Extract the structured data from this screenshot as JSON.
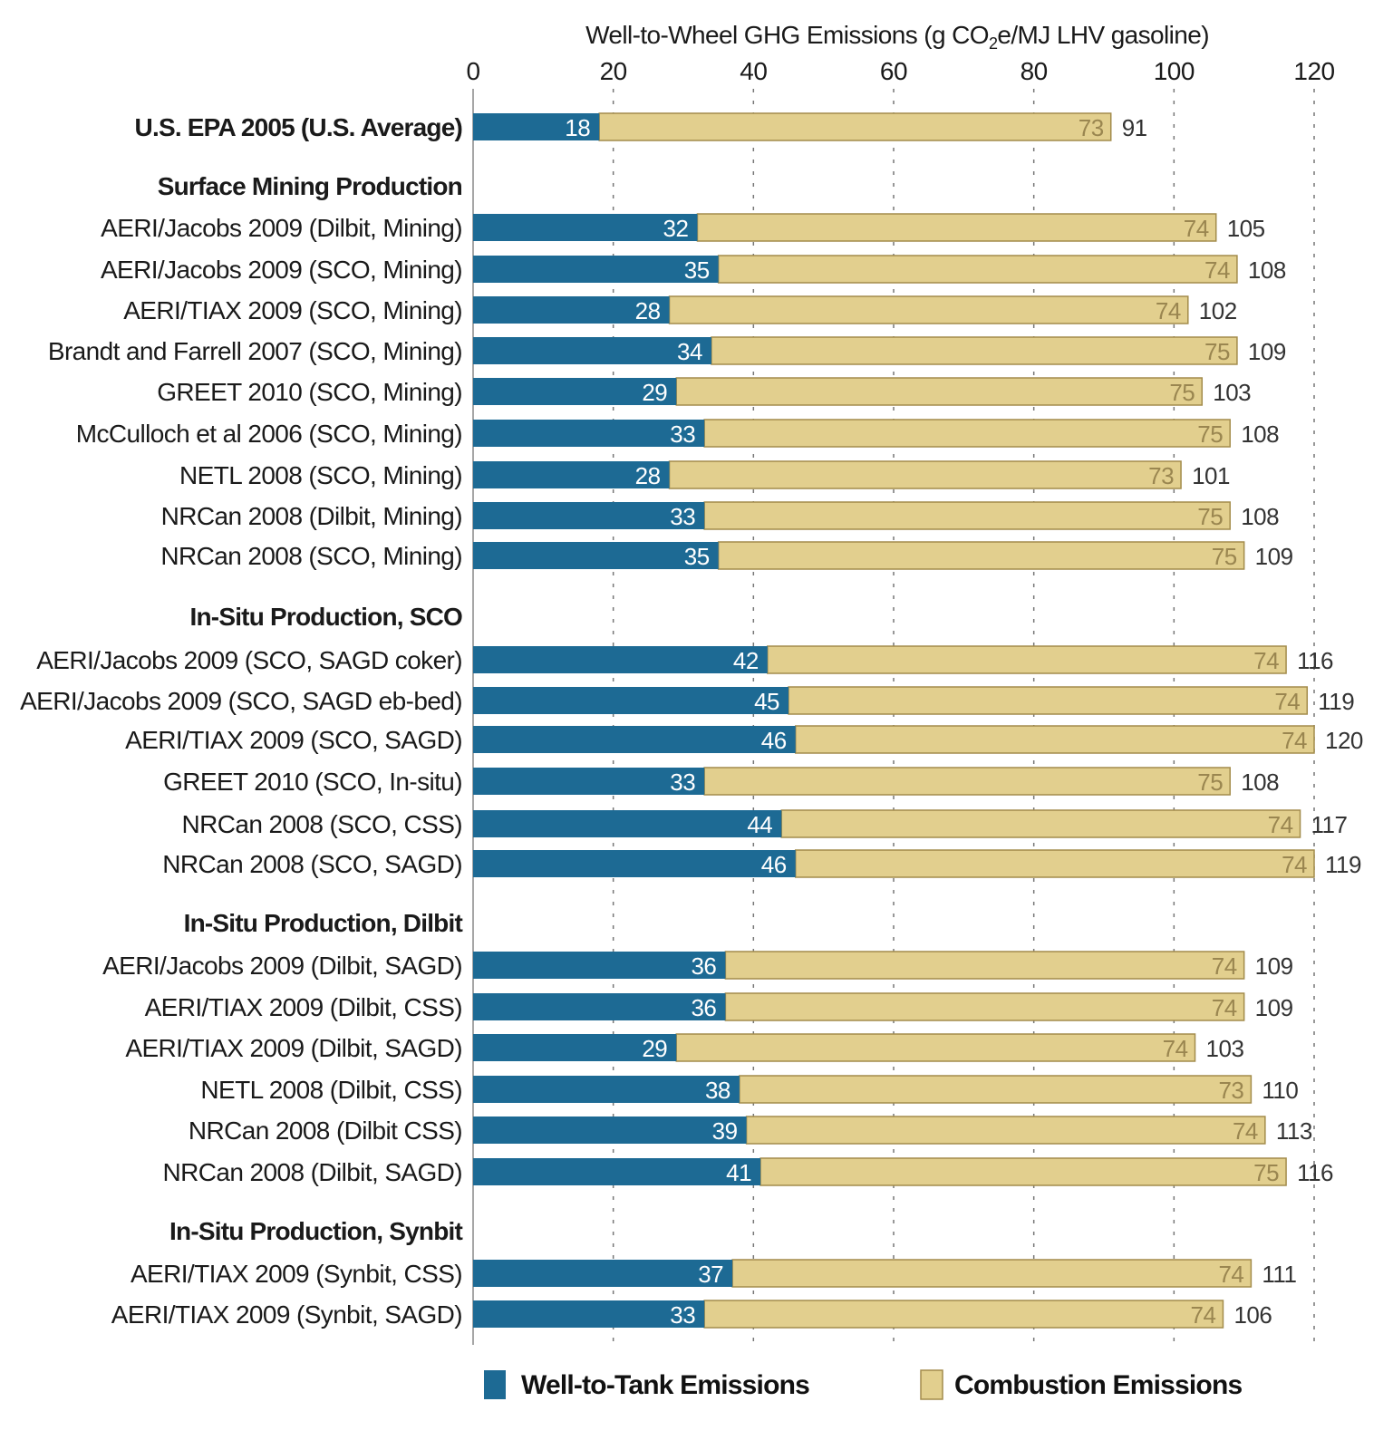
{
  "chart_data": {
    "type": "bar",
    "orientation": "horizontal",
    "stacked": true,
    "title": "Well-to-Wheel GHG Emissions (g CO2e/MJ LHV gasoline)",
    "title_parts": {
      "pre": "Well-to-Wheel GHG Emissions (g CO",
      "sub": "2",
      "post": "e/MJ LHV gasoline)"
    },
    "xlim": [
      0,
      120
    ],
    "xticks": [
      0,
      20,
      40,
      60,
      80,
      100,
      120
    ],
    "grid": "vertical dashed",
    "legend_placement": "bottom",
    "colors": {
      "well_to_tank": "#1d6a94",
      "combustion": "#e2cf8e",
      "combustion_border": "#a38c4c"
    },
    "series": [
      {
        "name": "Well-to-Tank Emissions",
        "key": "wtt"
      },
      {
        "name": "Combustion Emissions",
        "key": "comb"
      }
    ],
    "groups": [
      {
        "header": "",
        "rows": [
          {
            "label": "U.S. EPA 2005 (U.S. Average)",
            "bold": true,
            "wtt": 18,
            "comb": 73,
            "total": 91
          }
        ]
      },
      {
        "header": "Surface Mining Production",
        "rows": [
          {
            "label": "AERI/Jacobs 2009 (Dilbit, Mining)",
            "wtt": 32,
            "comb": 74,
            "total": 105
          },
          {
            "label": "AERI/Jacobs 2009 (SCO, Mining)",
            "wtt": 35,
            "comb": 74,
            "total": 108
          },
          {
            "label": "AERI/TIAX 2009 (SCO, Mining)",
            "wtt": 28,
            "comb": 74,
            "total": 102
          },
          {
            "label": "Brandt and Farrell 2007 (SCO, Mining)",
            "wtt": 34,
            "comb": 75,
            "total": 109
          },
          {
            "label": "GREET 2010 (SCO, Mining)",
            "wtt": 29,
            "comb": 75,
            "total": 103
          },
          {
            "label": "McCulloch et al 2006 (SCO, Mining)",
            "wtt": 33,
            "comb": 75,
            "total": 108
          },
          {
            "label": "NETL 2008 (SCO, Mining)",
            "wtt": 28,
            "comb": 73,
            "total": 101
          },
          {
            "label": "NRCan 2008 (Dilbit, Mining)",
            "wtt": 33,
            "comb": 75,
            "total": 108
          },
          {
            "label": "NRCan 2008 (SCO, Mining)",
            "wtt": 35,
            "comb": 75,
            "total": 109
          }
        ]
      },
      {
        "header": "In-Situ Production, SCO",
        "rows": [
          {
            "label": "AERI/Jacobs 2009 (SCO, SAGD coker)",
            "wtt": 42,
            "comb": 74,
            "total": 116
          },
          {
            "label": "AERI/Jacobs 2009 (SCO, SAGD eb-bed)",
            "wtt": 45,
            "comb": 74,
            "total": 119
          },
          {
            "label": "AERI/TIAX 2009 (SCO, SAGD)",
            "wtt": 46,
            "comb": 74,
            "total": 120
          },
          {
            "label": "GREET 2010 (SCO, In-situ)",
            "wtt": 33,
            "comb": 75,
            "total": 108
          },
          {
            "label": "NRCan 2008 (SCO, CSS)",
            "wtt": 44,
            "comb": 74,
            "total": 117
          },
          {
            "label": "NRCan 2008 (SCO, SAGD)",
            "wtt": 46,
            "comb": 74,
            "total": 119
          }
        ]
      },
      {
        "header": "In-Situ Production, Dilbit",
        "rows": [
          {
            "label": "AERI/Jacobs 2009 (Dilbit, SAGD)",
            "wtt": 36,
            "comb": 74,
            "total": 109
          },
          {
            "label": "AERI/TIAX 2009 (Dilbit, CSS)",
            "wtt": 36,
            "comb": 74,
            "total": 109
          },
          {
            "label": "AERI/TIAX 2009 (Dilbit, SAGD)",
            "wtt": 29,
            "comb": 74,
            "total": 103
          },
          {
            "label": "NETL 2008 (Dilbit, CSS)",
            "wtt": 38,
            "comb": 73,
            "total": 110
          },
          {
            "label": "NRCan 2008 (Dilbit CSS)",
            "wtt": 39,
            "comb": 74,
            "total": 113
          },
          {
            "label": "NRCan 2008 (Dilbit, SAGD)",
            "wtt": 41,
            "comb": 75,
            "total": 116
          }
        ]
      },
      {
        "header": "In-Situ Production, Synbit",
        "rows": [
          {
            "label": "AERI/TIAX 2009 (Synbit, CSS)",
            "wtt": 37,
            "comb": 74,
            "total": 111
          },
          {
            "label": "AERI/TIAX 2009 (Synbit, SAGD)",
            "wtt": 33,
            "comb": 74,
            "total": 106
          }
        ]
      }
    ]
  }
}
